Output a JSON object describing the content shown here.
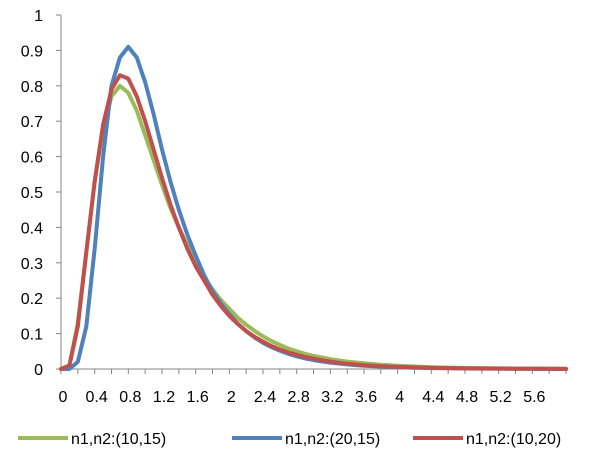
{
  "chart_data": {
    "type": "line",
    "title": "",
    "xlabel": "",
    "ylabel": "",
    "xlim": [
      0,
      6
    ],
    "ylim": [
      0,
      1
    ],
    "x_tick_labels": [
      "0",
      "0.4",
      "0.8",
      "1.2",
      "1.6",
      "2",
      "2.4",
      "2.8",
      "3.2",
      "3.6",
      "4",
      "4.4",
      "4.8",
      "5.2",
      "5.6"
    ],
    "y_tick_labels": [
      "0",
      "0.1",
      "0.2",
      "0.3",
      "0.4",
      "0.5",
      "0.6",
      "0.7",
      "0.8",
      "0.9",
      "1"
    ],
    "grid": false,
    "legend_position": "bottom",
    "x": [
      0,
      0.1,
      0.2,
      0.3,
      0.4,
      0.5,
      0.6,
      0.7,
      0.8,
      0.9,
      1.0,
      1.1,
      1.2,
      1.3,
      1.4,
      1.5,
      1.6,
      1.7,
      1.8,
      1.9,
      2.0,
      2.1,
      2.2,
      2.3,
      2.4,
      2.5,
      2.6,
      2.7,
      2.8,
      2.9,
      3.0,
      3.2,
      3.4,
      3.6,
      3.8,
      4.0,
      4.2,
      4.4,
      4.6,
      4.8,
      5.0,
      5.2,
      5.4,
      5.6,
      5.8,
      6.0
    ],
    "series": [
      {
        "name": "n1,n2:(10,15)",
        "color": "#9BBB59",
        "values": [
          0,
          0.01,
          0.13,
          0.33,
          0.53,
          0.68,
          0.77,
          0.8,
          0.78,
          0.73,
          0.66,
          0.59,
          0.52,
          0.455,
          0.4,
          0.35,
          0.3,
          0.26,
          0.225,
          0.195,
          0.17,
          0.145,
          0.125,
          0.108,
          0.092,
          0.079,
          0.068,
          0.058,
          0.05,
          0.043,
          0.037,
          0.028,
          0.021,
          0.016,
          0.012,
          0.009,
          0.007,
          0.005,
          0.004,
          0.003,
          0.0025,
          0.002,
          0.0015,
          0.001,
          0.001,
          0.0005
        ]
      },
      {
        "name": "n1,n2:(20,15)",
        "color": "#4F81BD",
        "values": [
          0,
          0,
          0.02,
          0.12,
          0.34,
          0.6,
          0.8,
          0.88,
          0.91,
          0.88,
          0.81,
          0.72,
          0.62,
          0.53,
          0.45,
          0.38,
          0.32,
          0.265,
          0.22,
          0.185,
          0.155,
          0.128,
          0.107,
          0.089,
          0.074,
          0.062,
          0.052,
          0.043,
          0.036,
          0.03,
          0.025,
          0.018,
          0.013,
          0.009,
          0.007,
          0.005,
          0.0035,
          0.0025,
          0.002,
          0.0015,
          0.001,
          0.001,
          0.0005,
          0.0005,
          0.0003,
          0.0002
        ]
      },
      {
        "name": "n1,n2:(10,20)",
        "color": "#C0504D",
        "values": [
          0,
          0.01,
          0.12,
          0.33,
          0.53,
          0.69,
          0.79,
          0.83,
          0.82,
          0.77,
          0.7,
          0.62,
          0.54,
          0.465,
          0.4,
          0.34,
          0.29,
          0.25,
          0.21,
          0.178,
          0.15,
          0.127,
          0.107,
          0.091,
          0.077,
          0.065,
          0.055,
          0.047,
          0.04,
          0.034,
          0.029,
          0.021,
          0.015,
          0.011,
          0.008,
          0.006,
          0.0045,
          0.0033,
          0.0025,
          0.0018,
          0.0014,
          0.001,
          0.0008,
          0.0006,
          0.0004,
          0.0003
        ]
      }
    ]
  }
}
